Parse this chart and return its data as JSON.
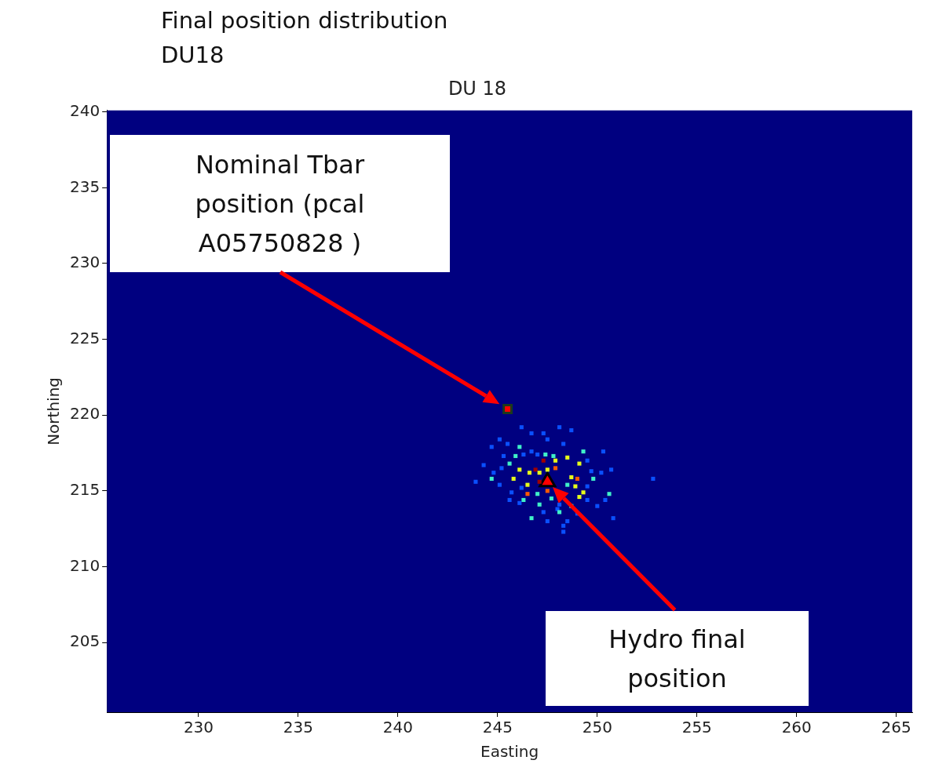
{
  "chart_data": {
    "type": "scatter",
    "title": "DU 18",
    "xlabel": "Easting",
    "ylabel": "Northing",
    "annotations": [
      "Final position distribution",
      "DU18",
      "Nominal Tbar position (pcal A05750828 )",
      "Hydro final position"
    ],
    "xlim": [
      225.4,
      265.8
    ],
    "xticks": [
      230,
      235,
      240,
      245,
      250,
      255,
      260,
      265
    ],
    "ylim": [
      200.4,
      240.1
    ],
    "yticks": [
      205,
      210,
      215,
      220,
      225,
      230,
      235,
      240
    ],
    "legend": false,
    "series": [
      {
        "marker": "square",
        "x": [
          246.2,
          248.1,
          248.7,
          246.7,
          247.3,
          247.5,
          245.1,
          245.5,
          248.3,
          244.7,
          246.1,
          246.7,
          245.3,
          245.9,
          246.3,
          247.0,
          247.8,
          248.5,
          249.3,
          250.3,
          247.3,
          247.9,
          249.1,
          249.5,
          245.6,
          246.9,
          247.9,
          246.1,
          246.6,
          247.1,
          247.5,
          245.2,
          244.8,
          244.3,
          248.7,
          249.0,
          249.8,
          250.7,
          250.2,
          245.8,
          244.7,
          243.9,
          246.5,
          247.1,
          248.5,
          248.9,
          252.8,
          246.5,
          247.5,
          247.0,
          249.3,
          249.1,
          250.6,
          249.5,
          246.3,
          247.7,
          247.1,
          245.6,
          246.1,
          248.1,
          248.0,
          248.7,
          250.4,
          250.0,
          250.8,
          246.7,
          247.5,
          248.5,
          248.3,
          248.3,
          247.3,
          248.1,
          249.0,
          245.1,
          245.7,
          246.2,
          249.5,
          249.7,
          247.4
        ],
        "values": [
          219.2,
          219.2,
          219.0,
          218.8,
          218.8,
          218.4,
          218.4,
          218.1,
          218.1,
          217.9,
          217.9,
          217.6,
          217.3,
          217.3,
          217.4,
          217.4,
          217.3,
          217.2,
          217.6,
          217.6,
          217.0,
          217.0,
          216.8,
          217.0,
          216.8,
          216.4,
          216.5,
          216.4,
          216.2,
          216.2,
          216.4,
          216.5,
          216.2,
          216.7,
          215.9,
          215.8,
          215.8,
          216.4,
          216.2,
          215.8,
          215.8,
          215.6,
          215.4,
          215.6,
          215.4,
          215.3,
          215.8,
          214.8,
          215.0,
          214.8,
          214.9,
          214.6,
          214.8,
          214.4,
          214.4,
          214.5,
          214.1,
          214.4,
          214.2,
          214.1,
          213.8,
          214.0,
          214.4,
          214.0,
          213.2,
          213.2,
          213.0,
          213.0,
          212.7,
          212.3,
          213.6,
          213.6,
          213.5,
          215.4,
          214.9,
          215.2,
          215.3,
          216.3,
          217.4
        ],
        "colors": [
          "#0a50ff",
          "#0a50ff",
          "#0a50ff",
          "#0a50ff",
          "#0a50ff",
          "#0a50ff",
          "#0a50ff",
          "#0a50ff",
          "#0a50ff",
          "#0a50ff",
          "#3ff0c8",
          "#0a50ff",
          "#0a50ff",
          "#3ff0c8",
          "#0a50ff",
          "#0a50ff",
          "#3ff0c8",
          "#e6ff1a",
          "#3ff0c8",
          "#0a50ff",
          "#a00000",
          "#e6ff1a",
          "#e6ff1a",
          "#0a50ff",
          "#3ff0c8",
          "#a00000",
          "#ff5a00",
          "#e6ff1a",
          "#e6ff1a",
          "#e6ff1a",
          "#e6ff1a",
          "#0a50ff",
          "#0a50ff",
          "#0a50ff",
          "#e6ff1a",
          "#ff5a00",
          "#3ff0c8",
          "#0a50ff",
          "#0a50ff",
          "#e6ff1a",
          "#3ff0c8",
          "#0a50ff",
          "#e6ff1a",
          "#a00000",
          "#3ff0c8",
          "#e6ff1a",
          "#0a50ff",
          "#ff5a00",
          "#ff5a00",
          "#3ff0c8",
          "#e6ff1a",
          "#e6ff1a",
          "#3ff0c8",
          "#0a50ff",
          "#3ff0c8",
          "#3ff0c8",
          "#3ff0c8",
          "#0a50ff",
          "#0a50ff",
          "#0a50ff",
          "#0a50ff",
          "#3ff0c8",
          "#0a50ff",
          "#0a50ff",
          "#0a50ff",
          "#3ff0c8",
          "#0a50ff",
          "#0a50ff",
          "#0a50ff",
          "#0a50ff",
          "#0a50ff",
          "#3ff0c8",
          "#0a50ff",
          "#0a50ff",
          "#0a50ff",
          "#0a50ff",
          "#0a50ff",
          "#0a50ff",
          "#3ff0c8"
        ]
      },
      {
        "marker": "square",
        "color": "#ff0000",
        "x": [
          245.5
        ],
        "values": [
          220.4
        ]
      },
      {
        "marker": "triangle",
        "color": "#ff0000",
        "x": [
          247.5
        ],
        "values": [
          215.6
        ]
      }
    ]
  }
}
